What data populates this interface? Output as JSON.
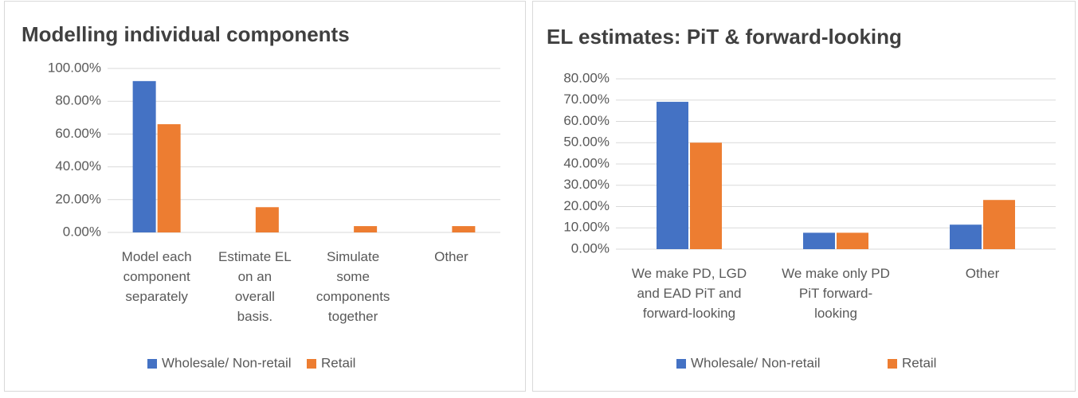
{
  "chart_data": [
    {
      "type": "bar",
      "title": "Modelling individual components",
      "categories": [
        "Model each component separately",
        "Estimate EL on an overall basis.",
        "Simulate some components together",
        "Other"
      ],
      "series": [
        {
          "name": "Wholesale/ Non-retail",
          "color": "#4472c4",
          "values": [
            92.3,
            0,
            0,
            0
          ]
        },
        {
          "name": "Retail",
          "color": "#ed7d31",
          "values": [
            66,
            15.4,
            3.85,
            3.85
          ]
        }
      ],
      "ylim": [
        0,
        100
      ],
      "yticks": [
        {
          "value": 0,
          "label": "0.00%"
        },
        {
          "value": 20,
          "label": "20.00%"
        },
        {
          "value": 40,
          "label": "40.00%"
        },
        {
          "value": 60,
          "label": "60.00%"
        },
        {
          "value": 80,
          "label": "80.00%"
        },
        {
          "value": 100,
          "label": "100.00%"
        }
      ],
      "grid": true,
      "legend": "bottom"
    },
    {
      "type": "bar",
      "title": "EL estimates: PiT & forward-looking",
      "categories": [
        "We make PD, LGD and EAD PiT and forward-looking",
        "We make only PD PiT forward-looking",
        "Other"
      ],
      "series": [
        {
          "name": "Wholesale/ Non-retail",
          "color": "#4472c4",
          "values": [
            69.2,
            7.7,
            11.5
          ]
        },
        {
          "name": "Retail",
          "color": "#ed7d31",
          "values": [
            50,
            7.7,
            23.1
          ]
        }
      ],
      "ylim": [
        0,
        80
      ],
      "yticks": [
        {
          "value": 0,
          "label": "0.00%"
        },
        {
          "value": 10,
          "label": "10.00%"
        },
        {
          "value": 20,
          "label": "20.00%"
        },
        {
          "value": 30,
          "label": "30.00%"
        },
        {
          "value": 40,
          "label": "40.00%"
        },
        {
          "value": 50,
          "label": "50.00%"
        },
        {
          "value": 60,
          "label": "60.00%"
        },
        {
          "value": 70,
          "label": "70.00%"
        },
        {
          "value": 80,
          "label": "80.00%"
        }
      ],
      "grid": true,
      "legend": "bottom"
    }
  ]
}
